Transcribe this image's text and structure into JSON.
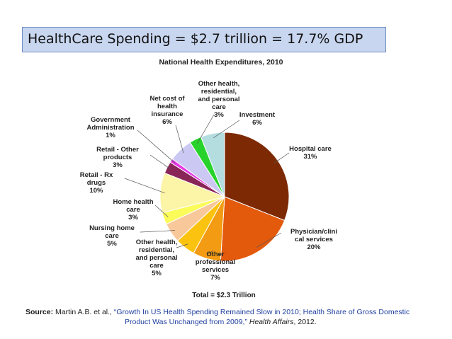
{
  "banner": {
    "text": "HealthCare Spending = $2.7 trillion = 17.7% GDP"
  },
  "chart_data": {
    "type": "pie",
    "title": "National Health Expenditures, 2010",
    "total_label": "Total = $2.3 Trillion",
    "slices": [
      {
        "label": [
          "Hospital care"
        ],
        "percent_label": "31%",
        "value": 31,
        "color": "#7d2a04"
      },
      {
        "label": [
          "Physician/clini",
          "cal services"
        ],
        "percent_label": "20%",
        "value": 20,
        "color": "#e35a0d"
      },
      {
        "label": [
          "Other",
          "professional",
          "services"
        ],
        "percent_label": "7%",
        "value": 7,
        "color": "#f49b14"
      },
      {
        "label": [
          "Other health,",
          "residential,",
          "and personal",
          "care"
        ],
        "percent_label": "5%",
        "value": 5,
        "color": "#fbc30f"
      },
      {
        "label": [
          "Nursing home",
          "care"
        ],
        "percent_label": "5%",
        "value": 5,
        "color": "#f8c89b"
      },
      {
        "label": [
          "Home health",
          "care"
        ],
        "percent_label": "3%",
        "value": 3,
        "color": "#fbfb5a"
      },
      {
        "label": [
          "Retail - Rx",
          "drugs"
        ],
        "percent_label": "10%",
        "value": 10,
        "color": "#fcf4a6"
      },
      {
        "label": [
          "Retail - Other",
          "products"
        ],
        "percent_label": "3%",
        "value": 3,
        "color": "#8a2558"
      },
      {
        "label": [
          "Government",
          "Administration"
        ],
        "percent_label": "1%",
        "value": 1,
        "color": "#e637e6"
      },
      {
        "label": [
          "Net cost of",
          "health",
          "insurance"
        ],
        "percent_label": "6%",
        "value": 6,
        "color": "#cbc9f3"
      },
      {
        "label": [
          "Other health,",
          "residential,",
          "and personal",
          "care"
        ],
        "percent_label": "3%",
        "value": 3,
        "color": "#27d32a"
      },
      {
        "label": [
          "Investment"
        ],
        "percent_label": "6%",
        "value": 6,
        "color": "#b4dde0"
      }
    ]
  },
  "source": {
    "label": "Source:",
    "authors": " Martin A.B. et al., ",
    "title_part1": "“Growth In US Health Spending Remained Slow in 2010; Health Share of Gross Domestic",
    "title_part2": "Product Was Unchanged from 2009,”",
    "journal": "Health Affairs",
    "year": ", 2012."
  }
}
